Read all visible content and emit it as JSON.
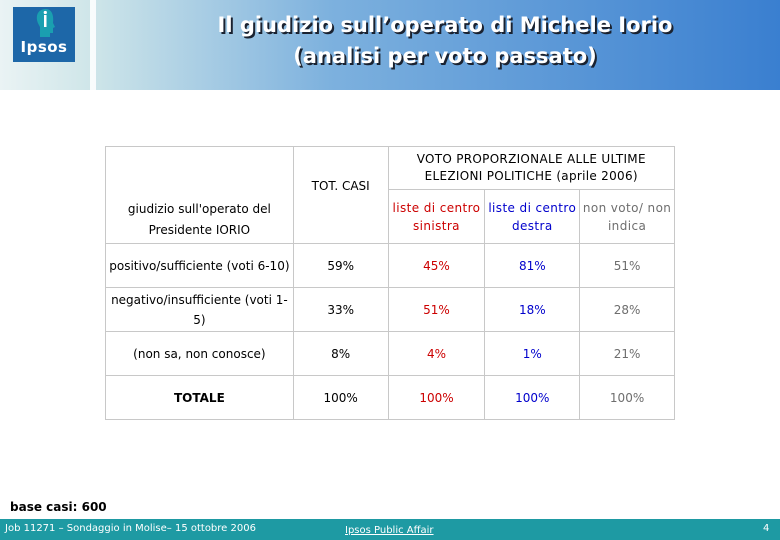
{
  "header": {
    "logo_text": "Ipsos",
    "title_line1": "Il giudizio sull’operato di Michele Iorio",
    "title_line2": "(analisi per voto passato)"
  },
  "table": {
    "label_header": "giudizio sull'operato del Presidente IORIO",
    "tot_header": "TOT. CASI",
    "voto_header": "VOTO PROPORZIONALE ALLE ULTIME ELEZIONI POLITICHE (aprile 2006)",
    "col_sinistra": "liste di centro sinistra",
    "col_destra": "liste di centro destra",
    "col_nonvoto": "non voto/ non indica",
    "rows": [
      {
        "label": "positivo/sufficiente (voti 6-10)",
        "tot": "59%",
        "sinistra": "45%",
        "destra": "81%",
        "nonvoto": "51%"
      },
      {
        "label": "negativo/insufficiente (voti 1-5)",
        "tot": "33%",
        "sinistra": "51%",
        "destra": "18%",
        "nonvoto": "28%"
      },
      {
        "label": "(non sa, non conosce)",
        "tot": "8%",
        "sinistra": "4%",
        "destra": "1%",
        "nonvoto": "21%"
      },
      {
        "label": "TOTALE",
        "tot": "100%",
        "sinistra": "100%",
        "destra": "100%",
        "nonvoto": "100%"
      }
    ]
  },
  "base_note": "base casi: 600",
  "footer": {
    "job": "Job 11271 – Sondaggio in Molise– 15 ottobre 2006",
    "company": "Ipsos Public Affair",
    "page": "4"
  },
  "colors": {
    "red": "#cc0000",
    "blue": "#0000cc",
    "gray": "#6e6e6e",
    "footer_bg": "#1e9aa3",
    "logo_bg": "#1d67a8"
  }
}
